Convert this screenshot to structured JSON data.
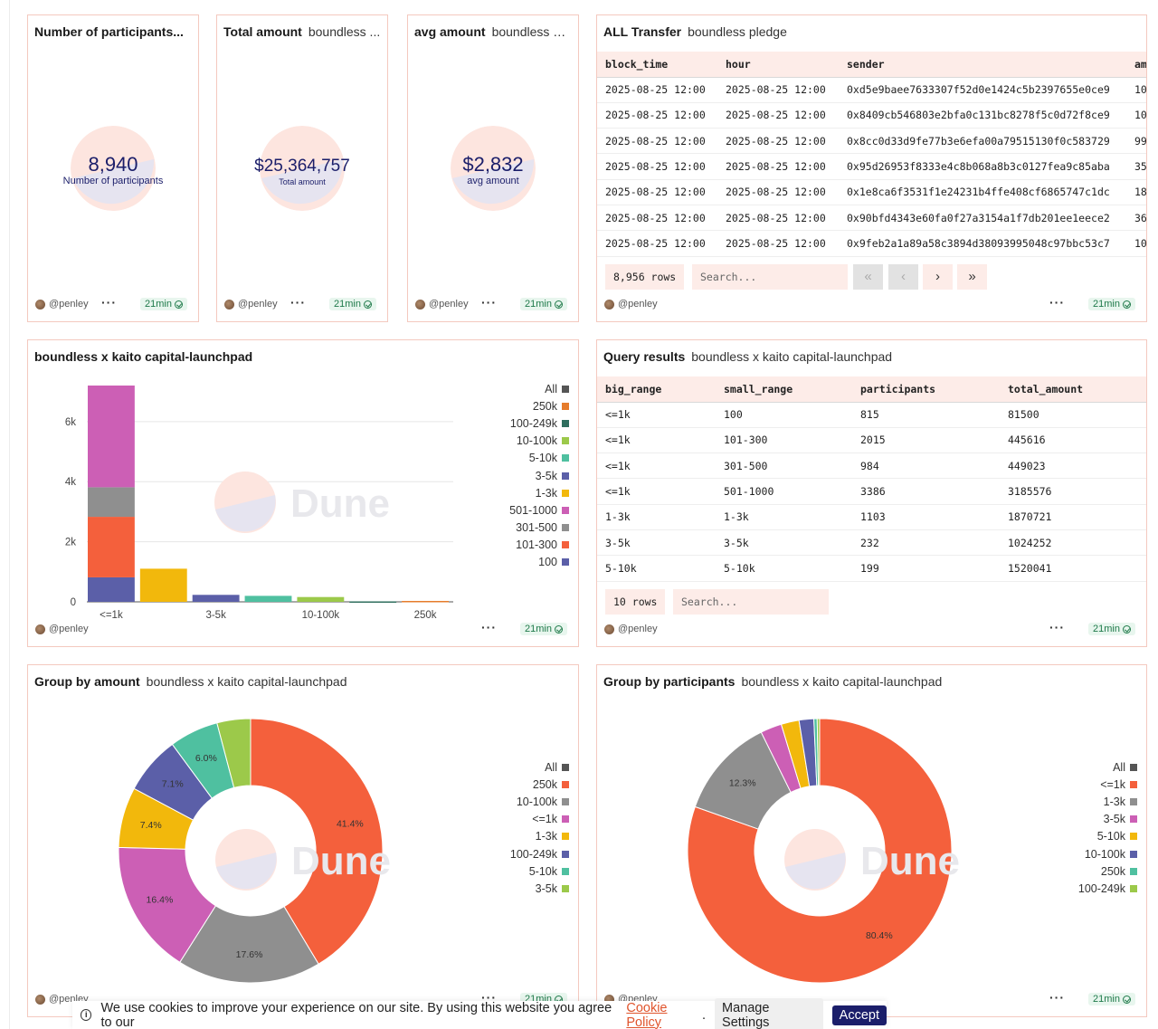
{
  "author": "@penley",
  "age_badge": "21min",
  "counters": [
    {
      "title": "Number of participants...",
      "subtitle": "",
      "value": "8,940",
      "label": "Number of participants"
    },
    {
      "title": "Total amount",
      "subtitle": "boundless ...",
      "value": "$25,364,757",
      "label": "Total amount"
    },
    {
      "title": "avg amount",
      "subtitle": "boundless pl...",
      "value": "$2,832",
      "label": "avg amount"
    }
  ],
  "transfers": {
    "title": "ALL Transfer",
    "subtitle": "boundless pledge",
    "columns": [
      "block_time",
      "hour",
      "sender",
      "am"
    ],
    "rows": [
      [
        "2025-08-25 12:00",
        "2025-08-25 12:00",
        "0xd5e9baee7633307f52d0e1424c5b2397655e0ce9",
        "10"
      ],
      [
        "2025-08-25 12:00",
        "2025-08-25 12:00",
        "0x8409cb546803e2bfa0c131bc8278f5c0d72f8ce9",
        "10"
      ],
      [
        "2025-08-25 12:00",
        "2025-08-25 12:00",
        "0x8cc0d33d9fe77b3e6efa00a79515130f0c583729",
        "99"
      ],
      [
        "2025-08-25 12:00",
        "2025-08-25 12:00",
        "0x95d26953f8333e4c8b068a8b3c0127fea9c85aba",
        "35"
      ],
      [
        "2025-08-25 12:00",
        "2025-08-25 12:00",
        "0x1e8ca6f3531f1e24231b4ffe408cf6865747c1dc",
        "18"
      ],
      [
        "2025-08-25 12:00",
        "2025-08-25 12:00",
        "0x90bfd4343e60fa0f27a3154a1f7db201ee1eece2",
        "36"
      ],
      [
        "2025-08-25 12:00",
        "2025-08-25 12:00",
        "0x9feb2a1a89a58c3894d38093995048c97bbc53c7",
        "10"
      ]
    ],
    "row_count": "8,956 rows",
    "search_placeholder": "Search...",
    "pager": [
      "«",
      "‹",
      "›",
      "»"
    ]
  },
  "bar_chart_card": {
    "title": "boundless x kaito capital-launchpad"
  },
  "query_results": {
    "title": "Query results",
    "subtitle": "boundless x kaito capital-launchpad",
    "columns": [
      "big_range",
      "small_range",
      "participants",
      "total_amount"
    ],
    "rows": [
      [
        "<=1k",
        "100",
        "815",
        "81500"
      ],
      [
        "<=1k",
        "101-300",
        "2015",
        "445616"
      ],
      [
        "<=1k",
        "301-500",
        "984",
        "449023"
      ],
      [
        "<=1k",
        "501-1000",
        "3386",
        "3185576"
      ],
      [
        "1-3k",
        "1-3k",
        "1103",
        "1870721"
      ],
      [
        "3-5k",
        "3-5k",
        "232",
        "1024252"
      ],
      [
        "5-10k",
        "5-10k",
        "199",
        "1520041"
      ]
    ],
    "row_count": "10 rows",
    "search_placeholder": "Search..."
  },
  "pie_amount_card": {
    "title": "Group by amount",
    "subtitle": "boundless x kaito capital-launchpad"
  },
  "pie_participants_card": {
    "title": "Group by participants",
    "subtitle": "boundless x kaito capital-launchpad"
  },
  "watermark": "Dune",
  "cookie": {
    "text": "We use cookies to improve your experience on our site. By using this website you agree to our",
    "link": "Cookie Policy",
    "period": ".",
    "manage": "Manage Settings",
    "accept": "Accept"
  },
  "chart_data": [
    {
      "type": "bar",
      "stacked": true,
      "title": "boundless x kaito capital-launchpad",
      "categories": [
        "<=1k",
        "1-3k",
        "3-5k",
        "5-10k",
        "10-100k",
        "100-249k",
        "250k"
      ],
      "x_tick_labels": [
        "<=1k",
        "",
        "3-5k",
        "",
        "10-100k",
        "",
        "250k"
      ],
      "ylim": [
        0,
        7200
      ],
      "y_ticks": [
        0,
        2000,
        4000,
        6000
      ],
      "y_tick_labels": [
        "0",
        "2k",
        "4k",
        "6k"
      ],
      "series": [
        {
          "name": "100",
          "color": "#5b5fa8",
          "values": [
            815,
            0,
            0,
            0,
            0,
            0,
            0
          ]
        },
        {
          "name": "101-300",
          "color": "#f4603c",
          "values": [
            2015,
            0,
            0,
            0,
            0,
            0,
            0
          ]
        },
        {
          "name": "301-500",
          "color": "#8f8f8f",
          "values": [
            984,
            0,
            0,
            0,
            0,
            0,
            0
          ]
        },
        {
          "name": "501-1000",
          "color": "#cc5fb5",
          "values": [
            3386,
            0,
            0,
            0,
            0,
            0,
            0
          ]
        },
        {
          "name": "1-3k",
          "color": "#f2b80c",
          "values": [
            0,
            1103,
            0,
            0,
            0,
            0,
            0
          ]
        },
        {
          "name": "3-5k",
          "color": "#5b5fa8",
          "values": [
            0,
            0,
            232,
            0,
            0,
            0,
            0
          ]
        },
        {
          "name": "5-10k",
          "color": "#4fc0a0",
          "values": [
            0,
            0,
            0,
            199,
            0,
            0,
            0
          ]
        },
        {
          "name": "10-100k",
          "color": "#9cc94a",
          "values": [
            0,
            0,
            0,
            0,
            160,
            0,
            0
          ]
        },
        {
          "name": "100-249k",
          "color": "#2f6e5e",
          "values": [
            0,
            0,
            0,
            0,
            0,
            15,
            0
          ]
        },
        {
          "name": "250k",
          "color": "#e67c2c",
          "values": [
            0,
            0,
            0,
            0,
            0,
            0,
            30
          ]
        }
      ],
      "legend": [
        {
          "name": "All",
          "color": "#555555"
        },
        {
          "name": "250k",
          "color": "#e67c2c"
        },
        {
          "name": "100-249k",
          "color": "#2f6e5e"
        },
        {
          "name": "10-100k",
          "color": "#9cc94a"
        },
        {
          "name": "5-10k",
          "color": "#4fc0a0"
        },
        {
          "name": "3-5k",
          "color": "#5b5fa8"
        },
        {
          "name": "1-3k",
          "color": "#f2b80c"
        },
        {
          "name": "501-1000",
          "color": "#cc5fb5"
        },
        {
          "name": "301-500",
          "color": "#8f8f8f"
        },
        {
          "name": "101-300",
          "color": "#f4603c"
        },
        {
          "name": "100",
          "color": "#5b5fa8"
        }
      ]
    },
    {
      "type": "pie",
      "donut": true,
      "title": "Group by amount",
      "slices": [
        {
          "name": "250k",
          "value": 41.4,
          "label": "41.4%",
          "color": "#f4603c"
        },
        {
          "name": "10-100k",
          "value": 17.6,
          "label": "17.6%",
          "color": "#8f8f8f"
        },
        {
          "name": "<=1k",
          "value": 16.4,
          "label": "16.4%",
          "color": "#cc5fb5"
        },
        {
          "name": "1-3k",
          "value": 7.4,
          "label": "7.4%",
          "color": "#f2b80c"
        },
        {
          "name": "100-249k",
          "value": 7.1,
          "label": "7.1%",
          "color": "#5b5fa8"
        },
        {
          "name": "5-10k",
          "value": 6.0,
          "label": "6.0%",
          "color": "#4fc0a0"
        },
        {
          "name": "3-5k",
          "value": 4.1,
          "label": "",
          "color": "#9cc94a"
        }
      ],
      "legend": [
        "All",
        "250k",
        "10-100k",
        "<=1k",
        "1-3k",
        "100-249k",
        "5-10k",
        "3-5k"
      ]
    },
    {
      "type": "pie",
      "donut": true,
      "title": "Group by participants",
      "slices": [
        {
          "name": "<=1k",
          "value": 80.4,
          "label": "80.4%",
          "color": "#f4603c"
        },
        {
          "name": "1-3k",
          "value": 12.3,
          "label": "12.3%",
          "color": "#8f8f8f"
        },
        {
          "name": "3-5k",
          "value": 2.6,
          "label": "",
          "color": "#cc5fb5"
        },
        {
          "name": "5-10k",
          "value": 2.2,
          "label": "",
          "color": "#f2b80c"
        },
        {
          "name": "10-100k",
          "value": 1.8,
          "label": "",
          "color": "#5b5fa8"
        },
        {
          "name": "250k",
          "value": 0.4,
          "label": "",
          "color": "#4fc0a0"
        },
        {
          "name": "100-249k",
          "value": 0.3,
          "label": "",
          "color": "#9cc94a"
        }
      ],
      "legend": [
        "All",
        "<=1k",
        "1-3k",
        "3-5k",
        "5-10k",
        "10-100k",
        "250k",
        "100-249k"
      ]
    }
  ]
}
